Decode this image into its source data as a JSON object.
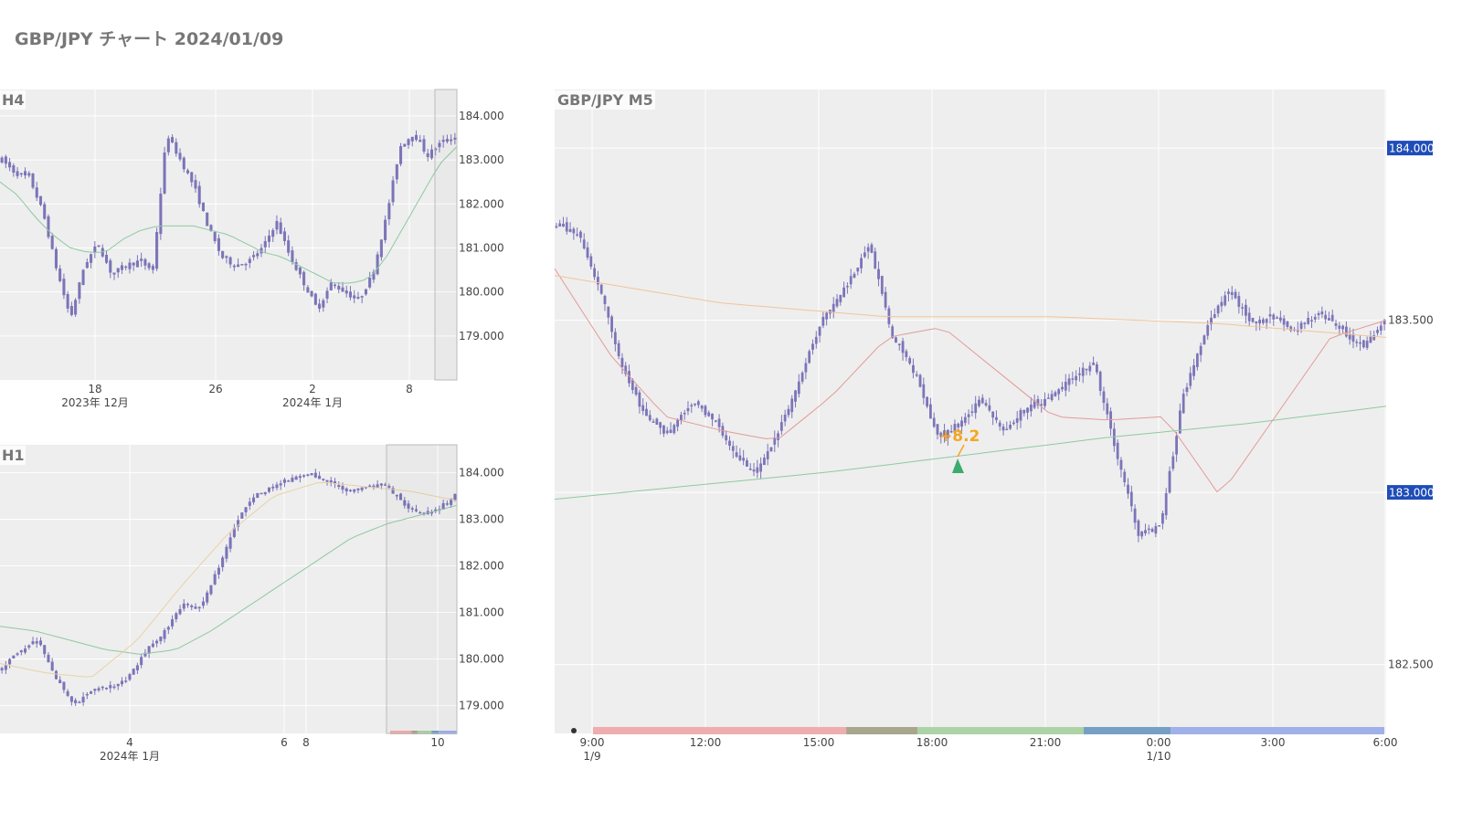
{
  "page": {
    "title": "GBP/JPY チャート 2024/01/09"
  },
  "colors": {
    "plot_bg": "#eeeeee",
    "candle": "#7b74b8",
    "ma_green": "#8fc9a0",
    "ma_red": "#e39a9a",
    "ma_orange": "#f2c49a",
    "ma_tan": "#e8d2a6",
    "badge": "#1f4db8",
    "annotation": "#f5a623",
    "marker": "#3daa6e",
    "session_colors": [
      "#efadae",
      "#a8a68b",
      "#acd3a5",
      "#769fc4",
      "#9fb0ea"
    ]
  },
  "chart_data": [
    {
      "type": "candlestick",
      "title": "H4",
      "ylim": [
        178.0,
        184.6
      ],
      "yticks": [
        "184.000",
        "183.000",
        "182.000",
        "181.000",
        "180.000",
        "179.000"
      ],
      "xticks": [
        {
          "label": "18",
          "sub": "2023年 12月"
        },
        {
          "label": "26",
          "sub": ""
        },
        {
          "label": "2",
          "sub": "2024年 1月"
        },
        {
          "label": "8",
          "sub": ""
        }
      ],
      "series": [
        {
          "values": [
            183.0,
            182.7,
            182.6,
            181.8,
            180.5,
            179.4,
            180.6,
            181.1,
            180.4,
            180.6,
            180.7,
            180.5,
            183.6,
            183.0,
            182.4,
            181.5,
            180.8,
            180.6,
            180.7,
            181.0,
            181.6,
            180.8,
            180.2,
            179.6,
            180.2,
            180.0,
            179.8,
            180.4,
            181.7,
            183.3,
            183.6,
            183.1,
            183.4,
            183.5
          ]
        },
        {
          "name": "",
          "values": [
            182.5,
            182.2,
            181.7,
            181.3,
            181.0,
            180.9,
            180.9,
            181.2,
            181.4,
            181.5,
            181.5,
            181.5,
            181.4,
            181.3,
            181.1,
            180.9,
            180.8,
            180.6,
            180.4,
            180.2,
            180.2,
            180.3,
            180.8,
            181.5,
            182.2,
            182.9,
            183.3
          ]
        }
      ],
      "highlight_box": true
    },
    {
      "type": "candlestick",
      "title": "H1",
      "ylim": [
        178.4,
        184.6
      ],
      "yticks": [
        "184.000",
        "183.000",
        "182.000",
        "181.000",
        "180.000",
        "179.000"
      ],
      "xticks": [
        {
          "label": "4",
          "sub": "2024年 1月"
        },
        {
          "label": "6",
          "sub": ""
        },
        {
          "label": "8",
          "sub": ""
        },
        {
          "label": "10",
          "sub": ""
        }
      ],
      "series": [
        {
          "values": [
            179.8,
            180.2,
            180.4,
            179.6,
            179.0,
            179.3,
            179.4,
            179.6,
            180.2,
            180.6,
            181.2,
            181.1,
            182.0,
            183.0,
            183.5,
            183.7,
            183.9,
            184.0,
            183.8,
            183.6,
            183.7,
            183.8,
            183.4,
            183.1,
            183.2,
            183.5
          ]
        },
        {
          "name": "",
          "values": [
            180.7,
            180.6,
            180.4,
            180.2,
            180.1,
            180.2,
            180.6,
            181.1,
            181.6,
            182.1,
            182.6,
            182.9,
            183.1,
            183.3
          ]
        },
        {
          "name": "",
          "values": [
            179.9,
            179.7,
            179.6,
            180.4,
            181.6,
            182.7,
            183.5,
            183.8,
            183.7,
            183.6,
            183.4
          ]
        }
      ],
      "sessions": true,
      "highlight_box": true
    },
    {
      "type": "candlestick",
      "title": "GBP/JPY M5",
      "ylim": [
        182.3,
        184.17
      ],
      "yticks": [
        "184.000",
        "183.500",
        "183.000",
        "182.500"
      ],
      "badges": [
        "184.000",
        "183.000"
      ],
      "xticks": [
        {
          "label": "9:00",
          "sub": "1/9"
        },
        {
          "label": "12:00",
          "sub": ""
        },
        {
          "label": "15:00",
          "sub": ""
        },
        {
          "label": "18:00",
          "sub": ""
        },
        {
          "label": "21:00",
          "sub": ""
        },
        {
          "label": "0:00",
          "sub": "1/10"
        },
        {
          "label": "3:00",
          "sub": ""
        },
        {
          "label": "6:00",
          "sub": ""
        }
      ],
      "series": [
        {
          "values": [
            183.78,
            183.75,
            183.58,
            183.35,
            183.22,
            183.17,
            183.26,
            183.22,
            183.1,
            183.06,
            183.19,
            183.35,
            183.52,
            183.6,
            183.72,
            183.46,
            183.35,
            183.16,
            183.2,
            183.27,
            183.18,
            183.25,
            183.27,
            183.33,
            183.38,
            183.12,
            182.88,
            182.9,
            183.28,
            183.47,
            183.59,
            183.5,
            183.51,
            183.47,
            183.52,
            183.48,
            183.42,
            183.5
          ]
        },
        {
          "name": "",
          "values": [
            183.65,
            183.4,
            183.22,
            183.18,
            183.15,
            183.28,
            183.45,
            183.48,
            183.35,
            183.22,
            183.21,
            183.22,
            182.99,
            183.22,
            183.45,
            183.5
          ]
        },
        {
          "name": "",
          "values": [
            182.98,
            183.02,
            183.06,
            183.11,
            183.16,
            183.2,
            183.25
          ]
        },
        {
          "name": "",
          "values": [
            183.63,
            183.55,
            183.51,
            183.51,
            183.49,
            183.45
          ]
        }
      ],
      "annotation": "+8.2",
      "sessions": true
    }
  ]
}
